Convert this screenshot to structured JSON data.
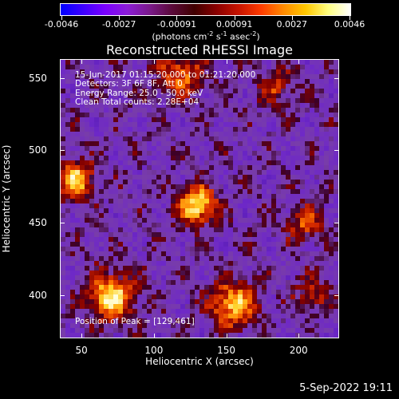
{
  "colorbar": {
    "colors": [
      "#0000ff",
      "#3d00ff",
      "#7a00ff",
      "#8b1cd6",
      "#7a1a8a",
      "#5a0a3a",
      "#400000",
      "#8a0000",
      "#c81400",
      "#ff3c00",
      "#ff8a00",
      "#ffc800",
      "#ffff80",
      "#ffffff"
    ],
    "tick_labels": [
      "-0.0046",
      "-0.0027",
      "-0.00091",
      "0.00091",
      "0.0027",
      "0.0046"
    ],
    "units": "(photons cm-2 s-1 asec-2)"
  },
  "title": "Reconstructed RHESSI Image",
  "overlay": {
    "time": "15-Jun-2017 01:15:20.000 to 01:21:20.000",
    "detectors": "Detectors: 3F 6F 8F, Att 0",
    "energy": "Energy Range: 25.0 - 50.0 keV",
    "clean": "Clean    Total counts: 2.28E+04",
    "peak": "Position of Peak = [129,461]"
  },
  "axes": {
    "x_ticks": [
      "50",
      "100",
      "150",
      "200"
    ],
    "y_ticks": [
      "550",
      "500",
      "450",
      "400"
    ],
    "xlabel": "Heliocentric X (arcsec)",
    "ylabel": "Heliocentric Y (arcsec)"
  },
  "image": {
    "sources": [
      {
        "x": 130,
        "y": 462,
        "peak": 1.0,
        "sigma": 9
      },
      {
        "x": 70,
        "y": 398,
        "peak": 0.95,
        "sigma": 11
      },
      {
        "x": 46,
        "y": 480,
        "peak": 0.85,
        "sigma": 9
      },
      {
        "x": 155,
        "y": 393,
        "peak": 0.85,
        "sigma": 11
      },
      {
        "x": 118,
        "y": 553,
        "peak": 0.6,
        "sigma": 11
      },
      {
        "x": 205,
        "y": 450,
        "peak": 0.5,
        "sigma": 9
      },
      {
        "x": 210,
        "y": 400,
        "peak": 0.45,
        "sigma": 8
      },
      {
        "x": 185,
        "y": 545,
        "peak": 0.4,
        "sigma": 9
      }
    ],
    "x_range": [
      35,
      228
    ],
    "y_range": [
      370,
      563
    ]
  },
  "footer": "5-Sep-2022 19:11"
}
